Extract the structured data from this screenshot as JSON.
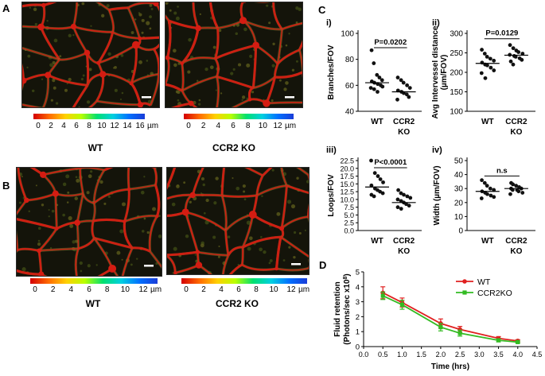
{
  "panels": {
    "A": "A",
    "B": "B",
    "C": "C",
    "D": "D"
  },
  "colorbars": {
    "a_wt": {
      "ticks": [
        "0",
        "2",
        "4",
        "6",
        "8",
        "10",
        "12",
        "14",
        "16"
      ],
      "unit": "µm"
    },
    "a_ko": {
      "ticks": [
        "0",
        "2",
        "4",
        "6",
        "8",
        "10",
        "12"
      ],
      "unit": "µm"
    },
    "b_wt": {
      "ticks": [
        "0",
        "2",
        "4",
        "6",
        "8",
        "10",
        "12"
      ],
      "unit": "µm"
    },
    "b_ko": {
      "ticks": [
        "0",
        "2",
        "4",
        "6",
        "8",
        "10",
        "12"
      ],
      "unit": "µm"
    }
  },
  "captions": {
    "a_wt": "WT",
    "a_ko": "CCR2 KO",
    "b_wt": "WT",
    "b_ko": "CCR2 KO"
  },
  "colors": {
    "wt": "#e02020",
    "ko": "#33bb22",
    "vessel": "#d41c12"
  },
  "chart_data": [
    {
      "id": "ci",
      "type": "scatter",
      "sublabel": "i)",
      "ylabel": "Branches/FOV",
      "ylim": [
        40,
        100
      ],
      "yticks": [
        40,
        60,
        80,
        100
      ],
      "categories": [
        "WT",
        "CCR2 KO"
      ],
      "cat_lines": [
        [
          "WT"
        ],
        [
          "CCR2",
          "KO"
        ]
      ],
      "series": [
        {
          "values": [
            87,
            77,
            68,
            66,
            64,
            63,
            62,
            61,
            60,
            59,
            58,
            57,
            55
          ],
          "mean": 62
        },
        {
          "values": [
            66,
            64,
            62,
            60,
            58,
            56,
            55,
            54,
            53,
            51,
            49
          ],
          "mean": 55
        }
      ],
      "annotation": "P=0.0202"
    },
    {
      "id": "cii",
      "type": "scatter",
      "sublabel": "ii)",
      "ylabel": "Avg Intervessel distance (µm/FOV)",
      "ylabel_lines": [
        "Avg Intervessel distance",
        "(µm/FOV)"
      ],
      "ylim": [
        100,
        300
      ],
      "yticks": [
        100,
        150,
        200,
        250,
        300
      ],
      "categories": [
        "WT",
        "CCR2 KO"
      ],
      "cat_lines": [
        [
          "WT"
        ],
        [
          "CCR2",
          "KO"
        ]
      ],
      "series": [
        {
          "values": [
            258,
            248,
            240,
            235,
            230,
            225,
            220,
            218,
            212,
            205,
            198,
            185
          ],
          "mean": 223
        },
        {
          "values": [
            270,
            262,
            256,
            252,
            248,
            245,
            242,
            240,
            236,
            232,
            228,
            220
          ],
          "mean": 244
        }
      ],
      "annotation": "P=0.0129"
    },
    {
      "id": "ciii",
      "type": "scatter",
      "sublabel": "iii)",
      "ylabel": "Loops/FOV",
      "ylim": [
        0,
        22.5
      ],
      "yticks": [
        0.0,
        2.5,
        5.0,
        7.5,
        10.0,
        12.5,
        15.0,
        17.5,
        20.0,
        22.5
      ],
      "categories": [
        "WT",
        "CCR2 KO"
      ],
      "cat_lines": [
        [
          "WT"
        ],
        [
          "CCR2",
          "KO"
        ]
      ],
      "series": [
        {
          "values": [
            22.5,
            18.5,
            17.5,
            16.5,
            15.5,
            14.5,
            13.5,
            13.0,
            12.5,
            12.0,
            11.5,
            11.0
          ],
          "mean": 14
        },
        {
          "values": [
            13.0,
            12.0,
            11.5,
            11.0,
            10.5,
            10.0,
            9.5,
            9.0,
            8.5,
            8.0,
            7.5,
            7.0
          ],
          "mean": 9
        }
      ],
      "annotation": "P<0.0001"
    },
    {
      "id": "civ",
      "type": "scatter",
      "sublabel": "iv)",
      "ylabel": "Width  (µm/FOV)",
      "ylim": [
        0,
        50
      ],
      "yticks": [
        0,
        10,
        20,
        30,
        40,
        50
      ],
      "categories": [
        "WT",
        "CCR2 KO"
      ],
      "cat_lines": [
        [
          "WT"
        ],
        [
          "CCR2",
          "KO"
        ]
      ],
      "series": [
        {
          "values": [
            36,
            34,
            32,
            30,
            29,
            28,
            27,
            26,
            25,
            24,
            23
          ],
          "mean": 28
        },
        {
          "values": [
            34,
            33,
            32,
            31,
            30,
            30,
            29,
            29,
            28,
            27,
            26
          ],
          "mean": 30
        }
      ],
      "annotation": "n.s"
    },
    {
      "id": "d",
      "type": "line",
      "xlabel": "Time (hrs)",
      "ylabel": "Fluid retention",
      "ylabel2": "(Photons/sec x10",
      "ylabel2_sup": "8",
      "ylabel2_end": ")",
      "xlim": [
        0,
        4.5
      ],
      "ylim": [
        0,
        5
      ],
      "xticks": [
        0.0,
        0.5,
        1.0,
        1.5,
        2.0,
        2.5,
        3.0,
        3.5,
        4.0,
        4.5
      ],
      "yticks": [
        0,
        1,
        2,
        3,
        4,
        5
      ],
      "legend_position": "top-right",
      "series": [
        {
          "name": "WT",
          "color": "#e02020",
          "x": [
            0.5,
            1.0,
            2.0,
            2.5,
            3.5,
            4.0
          ],
          "y": [
            3.6,
            2.95,
            1.55,
            1.15,
            0.55,
            0.38
          ],
          "err": [
            0.4,
            0.3,
            0.3,
            0.2,
            0.12,
            0.08
          ]
        },
        {
          "name": "CCR2KO",
          "color": "#33bb22",
          "x": [
            0.5,
            1.0,
            2.0,
            2.5,
            3.5,
            4.0
          ],
          "y": [
            3.4,
            2.8,
            1.3,
            0.9,
            0.42,
            0.3
          ],
          "err": [
            0.25,
            0.3,
            0.25,
            0.2,
            0.1,
            0.07
          ]
        }
      ]
    }
  ]
}
